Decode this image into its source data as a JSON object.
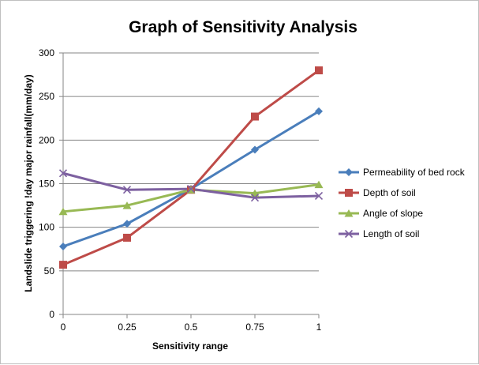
{
  "chart_data": {
    "type": "line",
    "title": "Graph of Sensitivity Analysis",
    "xlabel": "Sensitivity range",
    "ylabel": "Landslide triggering !day major rainfall(mm/day)",
    "x": [
      0,
      0.25,
      0.5,
      0.75,
      1
    ],
    "x_tick_labels": [
      "0",
      "0.25",
      "0.5",
      "0.75",
      "1"
    ],
    "ylim": [
      0,
      300
    ],
    "y_ticks": [
      0,
      50,
      100,
      150,
      200,
      250,
      300
    ],
    "y_tick_labels": [
      "0",
      "50",
      "100",
      "150",
      "200",
      "250",
      "300"
    ],
    "grid": "horizontal major gridlines",
    "legend_position": "right",
    "series": [
      {
        "name": "Permeability of bed rock",
        "values": [
          78,
          104,
          144,
          189,
          233
        ],
        "color": "#4a7ebb",
        "marker": "diamond"
      },
      {
        "name": "Depth of soil",
        "values": [
          57,
          88,
          143,
          227,
          280
        ],
        "color": "#be4b48",
        "marker": "square"
      },
      {
        "name": "Angle of slope",
        "values": [
          118,
          125,
          143,
          139,
          149
        ],
        "color": "#98b954",
        "marker": "triangle"
      },
      {
        "name": "Length of soil",
        "values": [
          162,
          143,
          144,
          134,
          136
        ],
        "color": "#7d60a0",
        "marker": "x"
      }
    ]
  }
}
